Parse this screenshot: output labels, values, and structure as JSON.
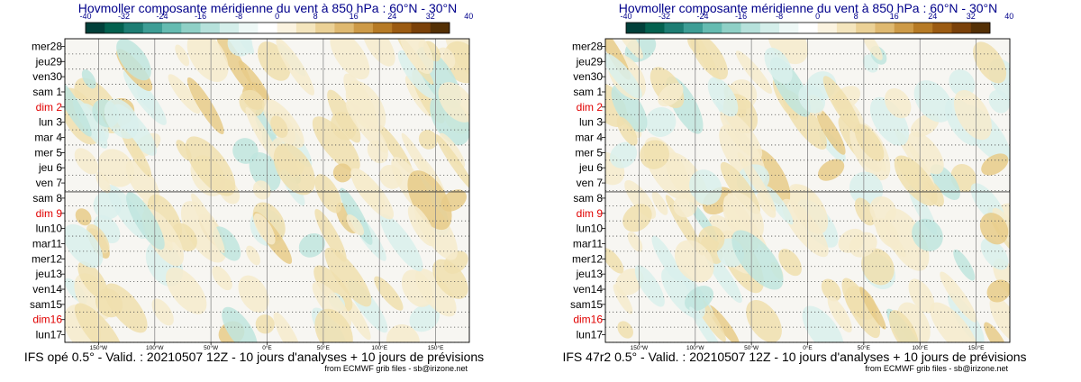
{
  "chart_data": [
    {
      "type": "heatmap",
      "title": "Hovmoller composante méridienne du vent à 850 hPa : 60°N - 30°N",
      "colorbar": {
        "ticks": [
          -40,
          -32,
          -24,
          -16,
          -8,
          0,
          8,
          16,
          24,
          32,
          40
        ],
        "colors": [
          "#01403a",
          "#03614f",
          "#1d7d73",
          "#3d9d95",
          "#65bbb1",
          "#8fd0c6",
          "#b6e1db",
          "#d4eeea",
          "#eef8f6",
          "#ffffff",
          "#fbf3e0",
          "#f4e5bd",
          "#ebd196",
          "#dfb970",
          "#cd9a47",
          "#b67a25",
          "#9b5b12",
          "#7a4109",
          "#543005"
        ]
      },
      "dates": [
        "mer28",
        "jeu29",
        "ven30",
        "sam 1",
        "dim 2",
        "lun 3",
        "mar 4",
        "mer 5",
        "jeu 6",
        "ven 7",
        "sam 8",
        "dim 9",
        "lun10",
        "mar11",
        "mer12",
        "jeu13",
        "ven14",
        "sam15",
        "dim16",
        "lun17"
      ],
      "sundays": [
        "dim 2",
        "dim 9",
        "dim16"
      ],
      "analysis_forecast_boundary": "sam 8",
      "x_ticks": [
        "150°W",
        "100°W",
        "50°W",
        "0°E",
        "50°E",
        "100°E",
        "150°E"
      ],
      "xlim": [
        -180,
        180
      ],
      "footer": "IFS opé 0.5° - Valid. : 20210507 12Z - 10 jours d'analyses + 10 jours de prévisions",
      "credit": "from ECMWF grib files - sb@irizone.net"
    },
    {
      "type": "heatmap",
      "title": "Hovmoller composante méridienne du vent à 850 hPa : 60°N - 30°N",
      "colorbar": {
        "ticks": [
          -40,
          -32,
          -24,
          -16,
          -8,
          0,
          8,
          16,
          24,
          32,
          40
        ],
        "colors": [
          "#01403a",
          "#03614f",
          "#1d7d73",
          "#3d9d95",
          "#65bbb1",
          "#8fd0c6",
          "#b6e1db",
          "#d4eeea",
          "#eef8f6",
          "#ffffff",
          "#fbf3e0",
          "#f4e5bd",
          "#ebd196",
          "#dfb970",
          "#cd9a47",
          "#b67a25",
          "#9b5b12",
          "#7a4109",
          "#543005"
        ]
      },
      "dates": [
        "mer28",
        "jeu29",
        "ven30",
        "sam 1",
        "dim 2",
        "lun 3",
        "mar 4",
        "mer 5",
        "jeu 6",
        "ven 7",
        "sam 8",
        "dim 9",
        "lun10",
        "mar11",
        "mer12",
        "jeu13",
        "ven14",
        "sam15",
        "dim16",
        "lun17"
      ],
      "sundays": [
        "dim 2",
        "dim 9",
        "dim16"
      ],
      "analysis_forecast_boundary": "sam 8",
      "x_ticks": [
        "150°W",
        "100°W",
        "50°W",
        "0°E",
        "50°E",
        "100°E",
        "150°E"
      ],
      "xlim": [
        -180,
        180
      ],
      "footer": "IFS 47r2 0.5° - Valid. : 20210507 12Z - 10 jours d'analyses + 10 jours de prévisions",
      "credit": "from ECMWF grib files - sb@irizone.net"
    }
  ]
}
